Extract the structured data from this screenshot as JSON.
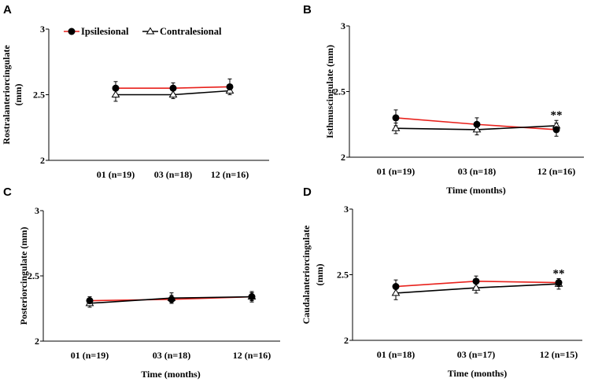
{
  "colors": {
    "ipsi": "#e8211c",
    "contra": "#000000",
    "axis": "#000000"
  },
  "legend": {
    "ipsi_label": "Ipsilesional",
    "contra_label": "Contralesional"
  },
  "chart_data": [
    {
      "panel": "A",
      "type": "line",
      "categories": [
        "01 (n=19)",
        "03 (n=18)",
        "12 (n=16)"
      ],
      "xlabel": "",
      "ylabel_lines": [
        "Rostralanteriorcingulate",
        "(mm)"
      ],
      "ylim": [
        2,
        3
      ],
      "yticks": [
        "3",
        "2.5",
        "2"
      ],
      "ytick_values": [
        3,
        2.5,
        2
      ],
      "series": [
        {
          "name": "Ipsilesional",
          "values": [
            2.55,
            2.55,
            2.56
          ],
          "errors": [
            0.05,
            0.04,
            0.06
          ]
        },
        {
          "name": "Contralesional",
          "values": [
            2.5,
            2.5,
            2.53
          ],
          "errors": [
            0.05,
            0.03,
            0.03
          ]
        }
      ],
      "annotations": []
    },
    {
      "panel": "B",
      "type": "line",
      "categories": [
        "01 (n=19)",
        "03 (n=18)",
        "12 (n=16)"
      ],
      "xlabel": "Time (months)",
      "ylabel_lines": [
        "Isthmuscingulate (mm)"
      ],
      "ylim": [
        2,
        3
      ],
      "yticks": [
        "3",
        "2.5",
        "2"
      ],
      "ytick_values": [
        3,
        2.5,
        2
      ],
      "series": [
        {
          "name": "Ipsilesional",
          "values": [
            2.3,
            2.25,
            2.21
          ],
          "errors": [
            0.06,
            0.05,
            0.05
          ]
        },
        {
          "name": "Contralesional",
          "values": [
            2.22,
            2.21,
            2.24
          ],
          "errors": [
            0.04,
            0.04,
            0.04
          ]
        }
      ],
      "annotations": [
        {
          "text": "**",
          "category_index": 2
        }
      ]
    },
    {
      "panel": "C",
      "type": "line",
      "categories": [
        "01 (n=19)",
        "03 (n=18)",
        "12 (n=16)"
      ],
      "xlabel": "Time (months)",
      "ylabel_lines": [
        "Posteriorcingulate (mm)"
      ],
      "ylim": [
        2,
        3
      ],
      "yticks": [
        "3",
        "2.5",
        "2"
      ],
      "ytick_values": [
        3,
        2.5,
        2
      ],
      "series": [
        {
          "name": "Ipsilesional",
          "values": [
            2.31,
            2.32,
            2.34
          ],
          "errors": [
            0.03,
            0.03,
            0.03
          ]
        },
        {
          "name": "Contralesional",
          "values": [
            2.29,
            2.33,
            2.34
          ],
          "errors": [
            0.03,
            0.04,
            0.04
          ]
        }
      ],
      "annotations": []
    },
    {
      "panel": "D",
      "type": "line",
      "categories": [
        "01 (n=18)",
        "03 (n=17)",
        "12 (n=15)"
      ],
      "xlabel": "Time (months)",
      "ylabel_lines": [
        "Caudalanteriorcingulate",
        "(mm)"
      ],
      "ylim": [
        2,
        3
      ],
      "yticks": [
        "3",
        "2.5",
        "2"
      ],
      "ytick_values": [
        3,
        2.5,
        2
      ],
      "series": [
        {
          "name": "Ipsilesional",
          "values": [
            2.41,
            2.45,
            2.44
          ],
          "errors": [
            0.05,
            0.04,
            0.03
          ]
        },
        {
          "name": "Contralesional",
          "values": [
            2.36,
            2.4,
            2.43
          ],
          "errors": [
            0.05,
            0.04,
            0.04
          ]
        }
      ],
      "annotations": [
        {
          "text": "**",
          "category_index": 2
        }
      ]
    }
  ]
}
